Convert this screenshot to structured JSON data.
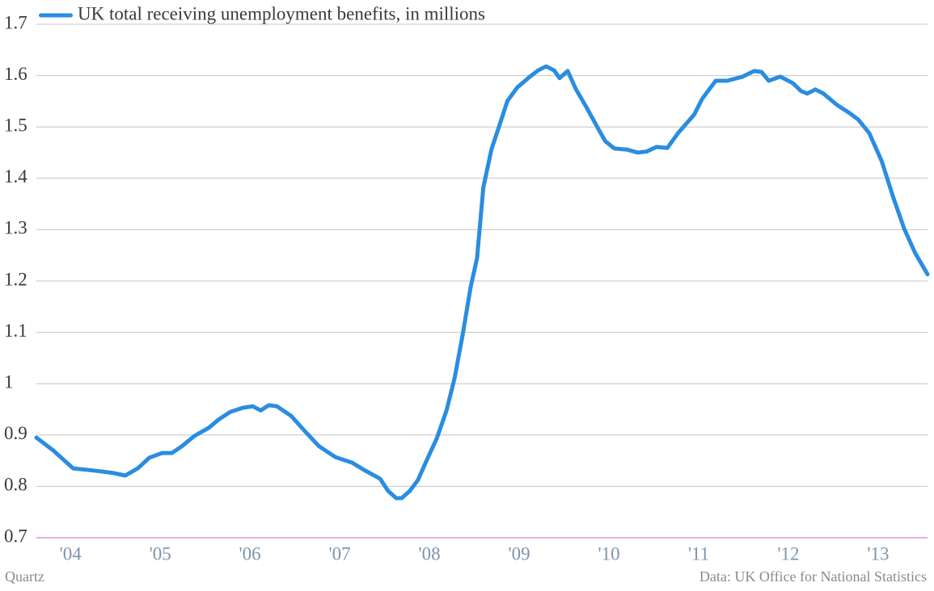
{
  "chart_data": {
    "type": "line",
    "series": [
      {
        "name": "UK total receiving unemployment benefits, in millions",
        "color": "#2a8de0",
        "x": [
          2003.62,
          2003.8,
          2004.03,
          2004.3,
          2004.48,
          2004.61,
          2004.75,
          2004.88,
          2005.02,
          2005.13,
          2005.24,
          2005.38,
          2005.54,
          2005.65,
          2005.78,
          2005.92,
          2006.03,
          2006.12,
          2006.21,
          2006.3,
          2006.46,
          2006.62,
          2006.77,
          2006.95,
          2007.14,
          2007.27,
          2007.45,
          2007.54,
          2007.63,
          2007.69,
          2007.78,
          2007.87,
          2007.97,
          2008.08,
          2008.19,
          2008.28,
          2008.37,
          2008.46,
          2008.53,
          2008.6,
          2008.69,
          2008.78,
          2008.87,
          2008.98,
          2009.12,
          2009.21,
          2009.3,
          2009.39,
          2009.45,
          2009.54,
          2009.63,
          2009.75,
          2009.86,
          2009.96,
          2010.06,
          2010.2,
          2010.32,
          2010.42,
          2010.53,
          2010.65,
          2010.77,
          2010.95,
          2011.04,
          2011.19,
          2011.32,
          2011.49,
          2011.62,
          2011.7,
          2011.78,
          2011.91,
          2012.05,
          2012.14,
          2012.21,
          2012.3,
          2012.39,
          2012.54,
          2012.68,
          2012.78,
          2012.9,
          2013.04,
          2013.17,
          2013.29,
          2013.41,
          2013.55
        ],
        "values": [
          0.895,
          0.871,
          0.835,
          0.83,
          0.826,
          0.821,
          0.835,
          0.856,
          0.865,
          0.865,
          0.878,
          0.898,
          0.914,
          0.93,
          0.945,
          0.953,
          0.956,
          0.948,
          0.958,
          0.956,
          0.937,
          0.906,
          0.878,
          0.857,
          0.846,
          0.832,
          0.815,
          0.791,
          0.777,
          0.777,
          0.791,
          0.812,
          0.851,
          0.893,
          0.948,
          1.011,
          1.095,
          1.189,
          1.244,
          1.382,
          1.456,
          1.503,
          1.551,
          1.577,
          1.598,
          1.61,
          1.618,
          1.61,
          1.595,
          1.609,
          1.574,
          1.538,
          1.503,
          1.472,
          1.458,
          1.456,
          1.45,
          1.452,
          1.461,
          1.459,
          1.488,
          1.524,
          1.555,
          1.59,
          1.59,
          1.598,
          1.609,
          1.607,
          1.59,
          1.598,
          1.585,
          1.57,
          1.565,
          1.573,
          1.565,
          1.543,
          1.527,
          1.514,
          1.488,
          1.433,
          1.362,
          1.302,
          1.255,
          1.213
        ]
      }
    ],
    "xlim": [
      2003.62,
      2013.55
    ],
    "xticks": [
      {
        "value": 2004,
        "label": "'04"
      },
      {
        "value": 2005,
        "label": "'05"
      },
      {
        "value": 2006,
        "label": "'06"
      },
      {
        "value": 2007,
        "label": "'07"
      },
      {
        "value": 2008,
        "label": "'08"
      },
      {
        "value": 2009,
        "label": "'09"
      },
      {
        "value": 2010,
        "label": "'10"
      },
      {
        "value": 2011,
        "label": "'11"
      },
      {
        "value": 2012,
        "label": "'12"
      },
      {
        "value": 2013,
        "label": "'13"
      }
    ],
    "ylim": [
      0.7,
      1.7
    ],
    "yticks": [
      0.7,
      0.8,
      0.9,
      1,
      1.1,
      1.2,
      1.3,
      1.4,
      1.5,
      1.6,
      1.7
    ],
    "grid": true,
    "source_left": "Quartz",
    "source_right": "Data: UK Office for National Statistics"
  }
}
